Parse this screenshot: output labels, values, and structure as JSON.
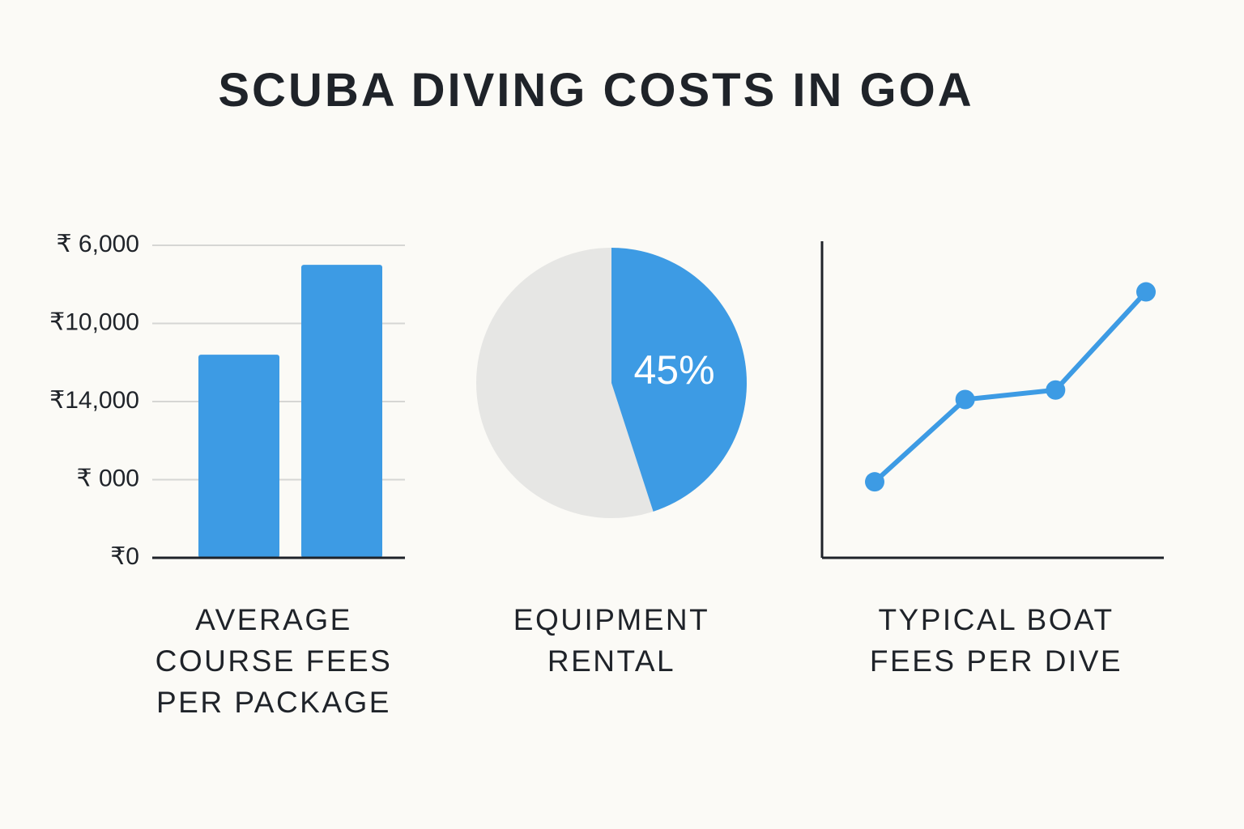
{
  "title": "SCUBA DIVING COSTS IN GOA",
  "chart_data": [
    {
      "type": "bar",
      "title": "AVERAGE COURSE FEES PER PACKAGE",
      "categories": [
        null,
        null
      ],
      "values": [
        2.6,
        3.75
      ],
      "color": "#3d9be4",
      "ylim": [
        0,
        4
      ],
      "yticks": [
        {
          "value": 0,
          "label": "₹0"
        },
        {
          "value": 1,
          "label": "₹ 000"
        },
        {
          "value": 2,
          "label": "₹14,000"
        },
        {
          "value": 3,
          "label": "₹10,000"
        },
        {
          "value": 4,
          "label": "₹ 6,000"
        }
      ],
      "grid": true
    },
    {
      "type": "pie",
      "title": "EQUIPMENT RENTAL",
      "values": [
        45
      ],
      "value_labels": [
        "45%"
      ],
      "color": "#3d9be4",
      "rest_color": "#e6e6e4"
    },
    {
      "type": "line",
      "title": "TYPICAL BOAT FEES PER DIVE",
      "categories": [
        null,
        null,
        null,
        null
      ],
      "values": [
        24,
        50,
        53,
        84
      ],
      "color": "#3d9be4",
      "ylim": [
        0,
        100
      ]
    }
  ]
}
